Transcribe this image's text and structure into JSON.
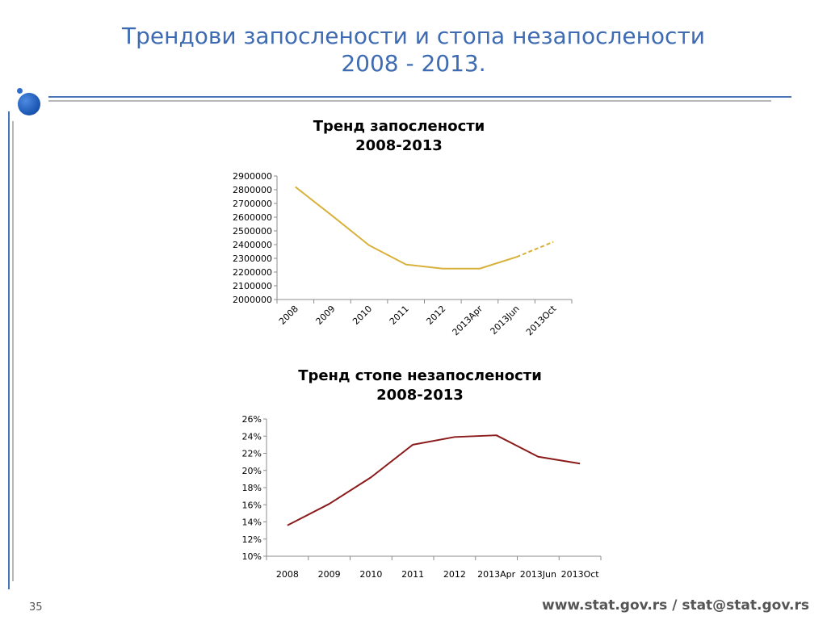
{
  "slide": {
    "title_line1": "Трендови запослености и стопа незапослености",
    "title_line2": "2008 - 2013.",
    "page_number": "35",
    "footer": "www.stat.gov.rs / stat@stat.gov.rs"
  },
  "colors": {
    "title": "#3e6bb2",
    "employment_line": "#d8b13a",
    "unemployment_line": "#8b1a1a",
    "accent_blue": "#4a74b8",
    "accent_gray": "#b7b7b7"
  },
  "chart_data": [
    {
      "type": "line",
      "title_line1": "Тренд запослености",
      "title_line2": "2008-2013",
      "categories": [
        "2008",
        "2009",
        "2010",
        "2011",
        "2012",
        "2013Apr",
        "2013Jun",
        "2013Oct"
      ],
      "values": [
        2820000,
        2610000,
        2395000,
        2255000,
        2225000,
        2225000,
        2310000,
        2420000
      ],
      "dashed_from_index": 6,
      "ylim": [
        2000000,
        2900000
      ],
      "yticks": [
        2000000,
        2100000,
        2200000,
        2300000,
        2400000,
        2500000,
        2600000,
        2700000,
        2800000,
        2900000
      ],
      "ytick_labels": [
        "2000000",
        "2100000",
        "2200000",
        "2300000",
        "2400000",
        "2500000",
        "2600000",
        "2700000",
        "2800000",
        "2900000"
      ],
      "xtick_rotation": -45,
      "legend": "none",
      "grid": false
    },
    {
      "type": "line",
      "title_line1": "Тренд стопе незапослености",
      "title_line2": "2008-2013",
      "categories": [
        "2008",
        "2009",
        "2010",
        "2011",
        "2012",
        "2013Apr",
        "2013Jun",
        "2013Oct"
      ],
      "values": [
        13.6,
        16.1,
        19.2,
        23.0,
        23.9,
        24.1,
        21.6,
        20.8
      ],
      "ylim": [
        10,
        26
      ],
      "yticks": [
        10,
        12,
        14,
        16,
        18,
        20,
        22,
        24,
        26
      ],
      "ytick_labels": [
        "10%",
        "12%",
        "14%",
        "16%",
        "18%",
        "20%",
        "22%",
        "24%",
        "26%"
      ],
      "xtick_rotation": 0,
      "legend": "none",
      "grid": false
    }
  ]
}
